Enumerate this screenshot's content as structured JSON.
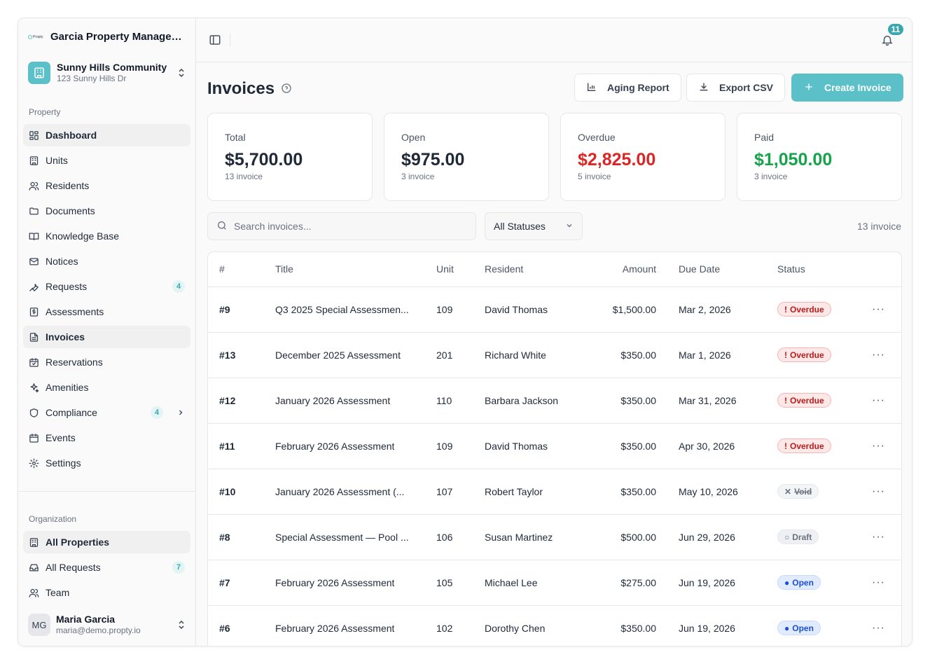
{
  "sidebar": {
    "org_name": "Garcia Property Management",
    "logo_text": "Propty",
    "property": {
      "name": "Sunny Hills Community",
      "address": "123 Sunny Hills Dr"
    },
    "property_section_label": "Property",
    "nav": [
      {
        "label": "Dashboard",
        "icon": "dashboard-icon",
        "active": true
      },
      {
        "label": "Units",
        "icon": "building-icon"
      },
      {
        "label": "Residents",
        "icon": "users-icon"
      },
      {
        "label": "Documents",
        "icon": "folder-icon"
      },
      {
        "label": "Knowledge Base",
        "icon": "book-icon"
      },
      {
        "label": "Notices",
        "icon": "mail-icon"
      },
      {
        "label": "Requests",
        "icon": "wrench-icon",
        "badge": "4"
      },
      {
        "label": "Assessments",
        "icon": "dollar-file-icon"
      },
      {
        "label": "Invoices",
        "icon": "file-text-icon",
        "active": true
      },
      {
        "label": "Reservations",
        "icon": "calendar-check-icon"
      },
      {
        "label": "Amenities",
        "icon": "sparkles-icon"
      },
      {
        "label": "Compliance",
        "icon": "shield-icon",
        "badge": "4",
        "chevron": true
      },
      {
        "label": "Events",
        "icon": "calendar-icon"
      },
      {
        "label": "Settings",
        "icon": "gear-icon"
      }
    ],
    "org_section_label": "Organization",
    "org_nav": [
      {
        "label": "All Properties",
        "icon": "building-icon",
        "active": true
      },
      {
        "label": "All Requests",
        "icon": "inbox-icon",
        "badge": "7"
      },
      {
        "label": "Team",
        "icon": "users-icon"
      }
    ],
    "user": {
      "initials": "MG",
      "name": "Maria Garcia",
      "email": "maria@demo.propty.io"
    }
  },
  "topbar": {
    "notification_count": "11"
  },
  "page": {
    "title": "Invoices",
    "buttons": {
      "aging": "Aging Report",
      "export": "Export CSV",
      "create": "Create Invoice"
    }
  },
  "summary": [
    {
      "label": "Total",
      "value": "$5,700.00",
      "sub": "13 invoice",
      "color": "#1f2937"
    },
    {
      "label": "Open",
      "value": "$975.00",
      "sub": "3 invoice",
      "color": "#1f2937"
    },
    {
      "label": "Overdue",
      "value": "$2,825.00",
      "sub": "5 invoice",
      "color": "#dc2626"
    },
    {
      "label": "Paid",
      "value": "$1,050.00",
      "sub": "3 invoice",
      "color": "#16a34a"
    }
  ],
  "filters": {
    "search_placeholder": "Search invoices...",
    "status_selected": "All Statuses",
    "count_label": "13 invoice"
  },
  "table": {
    "columns": [
      "#",
      "Title",
      "Unit",
      "Resident",
      "Amount",
      "Due Date",
      "Status"
    ],
    "rows": [
      {
        "num": "#9",
        "title": "Q3 2025 Special Assessmen...",
        "unit": "109",
        "resident": "David Thomas",
        "amount": "$1,500.00",
        "due": "Mar 2, 2026",
        "status": "Overdue",
        "status_type": "overdue",
        "status_glyph": "!"
      },
      {
        "num": "#13",
        "title": "December 2025 Assessment",
        "unit": "201",
        "resident": "Richard White",
        "amount": "$350.00",
        "due": "Mar 1, 2026",
        "status": "Overdue",
        "status_type": "overdue",
        "status_glyph": "!"
      },
      {
        "num": "#12",
        "title": "January 2026 Assessment",
        "unit": "110",
        "resident": "Barbara Jackson",
        "amount": "$350.00",
        "due": "Mar 31, 2026",
        "status": "Overdue",
        "status_type": "overdue",
        "status_glyph": "!"
      },
      {
        "num": "#11",
        "title": "February 2026 Assessment",
        "unit": "109",
        "resident": "David Thomas",
        "amount": "$350.00",
        "due": "Apr 30, 2026",
        "status": "Overdue",
        "status_type": "overdue",
        "status_glyph": "!"
      },
      {
        "num": "#10",
        "title": "January 2026 Assessment (...",
        "unit": "107",
        "resident": "Robert Taylor",
        "amount": "$350.00",
        "due": "May 10, 2026",
        "status": "Void",
        "status_type": "void",
        "status_glyph": "✕"
      },
      {
        "num": "#8",
        "title": "Special Assessment — Pool ...",
        "unit": "106",
        "resident": "Susan Martinez",
        "amount": "$500.00",
        "due": "Jun 29, 2026",
        "status": "Draft",
        "status_type": "draft",
        "status_glyph": "○"
      },
      {
        "num": "#7",
        "title": "February 2026 Assessment",
        "unit": "105",
        "resident": "Michael Lee",
        "amount": "$275.00",
        "due": "Jun 19, 2026",
        "status": "Open",
        "status_type": "open",
        "status_glyph": "●"
      },
      {
        "num": "#6",
        "title": "February 2026 Assessment",
        "unit": "102",
        "resident": "Dorothy Chen",
        "amount": "$350.00",
        "due": "Jun 19, 2026",
        "status": "Open",
        "status_type": "open",
        "status_glyph": "●"
      }
    ]
  }
}
